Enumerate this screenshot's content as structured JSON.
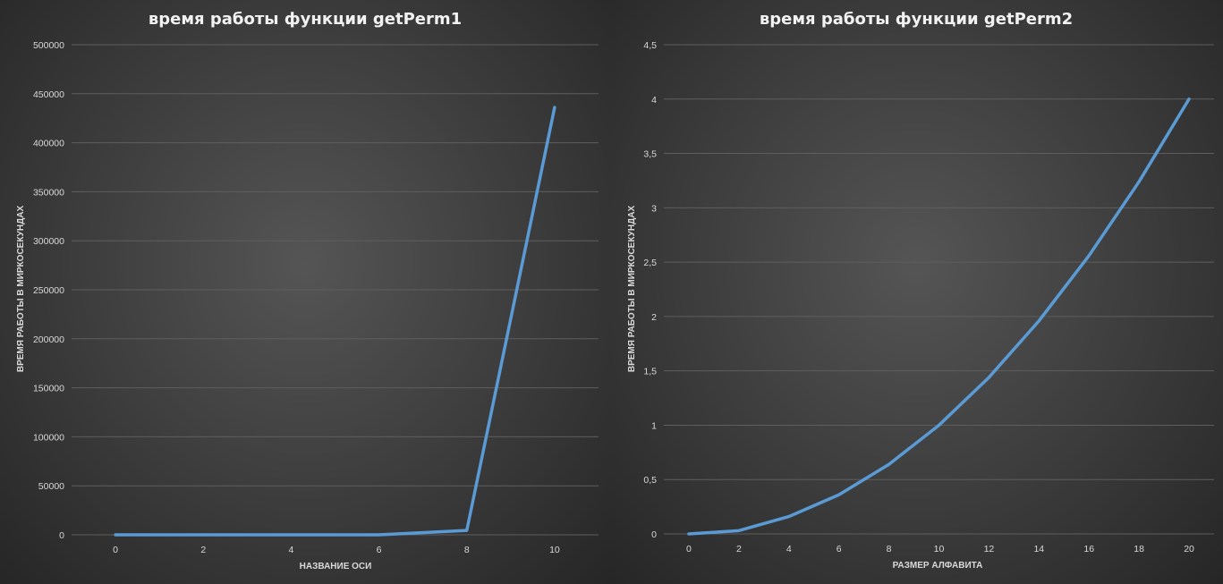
{
  "chart_data": [
    {
      "type": "line",
      "title": "время работы функции getPerm1",
      "xlabel": "НАЗВАНИЕ ОСИ",
      "ylabel": "ВРЕМЯ РАБОТЫ В МИРКОСЕКУНДАХ",
      "x": [
        0,
        2,
        4,
        6,
        8,
        10
      ],
      "series": [
        {
          "values": [
            0,
            0,
            0,
            0,
            4500,
            436000
          ]
        }
      ],
      "xlim": [
        -1,
        11
      ],
      "ylim": [
        0,
        500000
      ],
      "xticks": [
        "0",
        "2",
        "4",
        "6",
        "8",
        "10"
      ],
      "yticks": [
        "0",
        "50000",
        "100000",
        "150000",
        "200000",
        "250000",
        "300000",
        "350000",
        "400000",
        "450000",
        "500000"
      ],
      "grid": true,
      "color": "#5b9bd5"
    },
    {
      "type": "line",
      "title": "время работы функции getPerm2",
      "xlabel": "РАЗМЕР АЛФАВИТА",
      "ylabel": "ВРЕМЯ РАБОТЫ В МИРКОСЕКУНДАХ",
      "x": [
        0,
        2,
        4,
        6,
        8,
        10,
        12,
        14,
        16,
        18,
        20
      ],
      "series": [
        {
          "values": [
            0,
            0.03,
            0.16,
            0.36,
            0.64,
            1.0,
            1.44,
            1.96,
            2.56,
            3.24,
            4.0
          ]
        }
      ],
      "xlim": [
        -1,
        21
      ],
      "ylim": [
        0,
        4.5
      ],
      "xticks": [
        "0",
        "2",
        "4",
        "6",
        "8",
        "10",
        "12",
        "14",
        "16",
        "18",
        "20"
      ],
      "yticks": [
        "0",
        "0,5",
        "1",
        "1,5",
        "2",
        "2,5",
        "3",
        "3,5",
        "4",
        "4,5"
      ],
      "grid": true,
      "color": "#5b9bd5"
    }
  ]
}
